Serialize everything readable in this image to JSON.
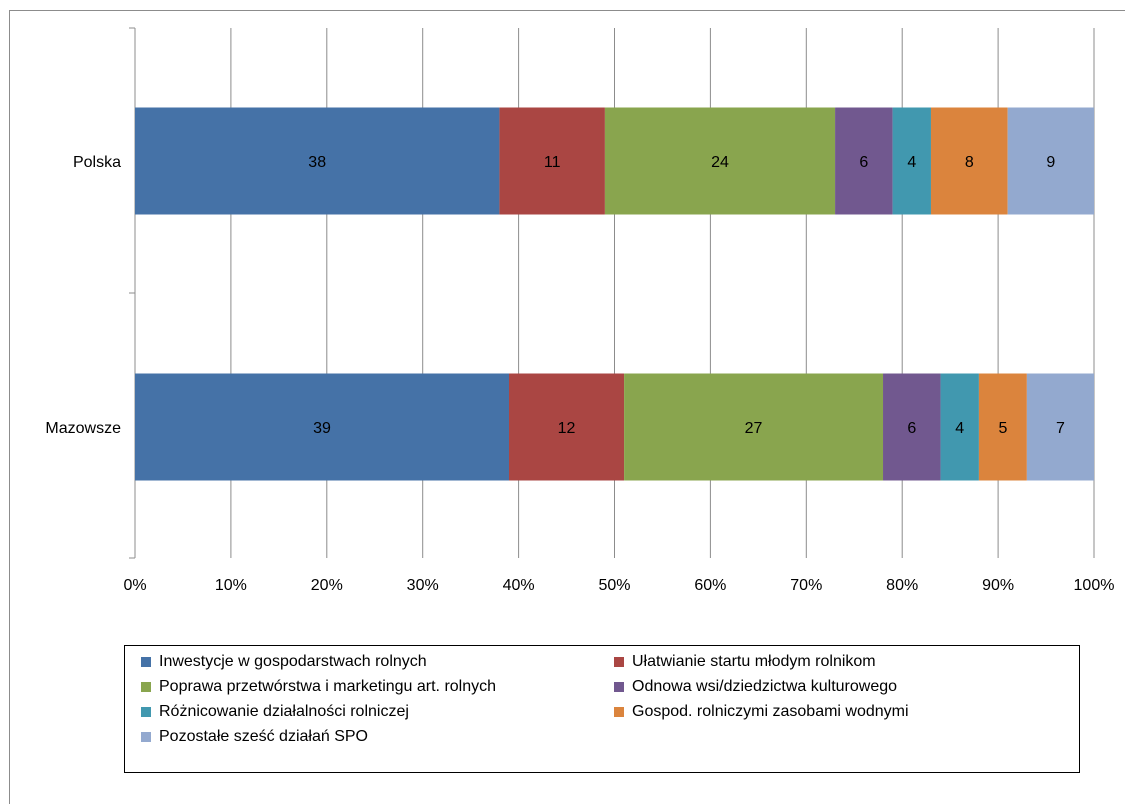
{
  "chart_data": {
    "type": "bar",
    "orientation": "horizontal",
    "stacked": "percent",
    "title": "",
    "xlabel": "",
    "ylabel": "",
    "xlim": [
      0,
      100
    ],
    "grid": true,
    "legend_position": "bottom",
    "categories": [
      "Polska",
      "Mazowsze"
    ],
    "x_ticks": [
      "0%",
      "10%",
      "20%",
      "30%",
      "40%",
      "50%",
      "60%",
      "70%",
      "80%",
      "90%",
      "100%"
    ],
    "series": [
      {
        "name": "Inwestycje w gospodarstwach rolnych",
        "values": [
          38,
          39
        ],
        "color": "#4572a7"
      },
      {
        "name": "Ułatwianie startu młodym rolnikom",
        "values": [
          11,
          12
        ],
        "color": "#aa4643"
      },
      {
        "name": "Poprawa przetwórstwa i marketingu art. rolnych",
        "values": [
          24,
          27
        ],
        "color": "#89a54e"
      },
      {
        "name": "Odnowa wsi/dziedzictwa kulturowego",
        "values": [
          6,
          6
        ],
        "color": "#71588f"
      },
      {
        "name": "Różnicowanie działalności rolniczej",
        "values": [
          4,
          4
        ],
        "color": "#4198af"
      },
      {
        "name": "Gospod. rolniczymi zasobami wodnymi",
        "values": [
          8,
          5
        ],
        "color": "#db843d"
      },
      {
        "name": "Pozostałe sześć działań SPO",
        "values": [
          9,
          7
        ],
        "color": "#93a9cf"
      }
    ]
  }
}
